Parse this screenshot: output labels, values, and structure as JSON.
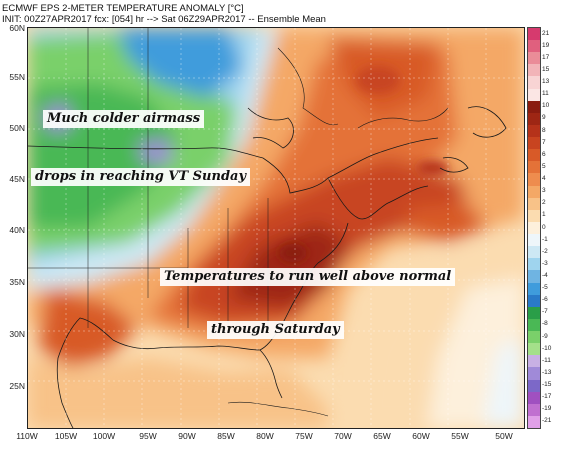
{
  "header": {
    "title": "ECMWF EPS 2-METER TEMPERATURE ANOMALY [°C]",
    "init": "INIT: 00Z27APR2017 fcx: [054] hr --> Sat 06Z29APR2017 -- Ensemble Mean"
  },
  "map": {
    "lat_labels": [
      "60N",
      "55N",
      "50N",
      "45N",
      "40N",
      "35N",
      "30N",
      "25N"
    ],
    "lon_labels": [
      "110W",
      "105W",
      "100W",
      "95W",
      "90W",
      "85W",
      "80W",
      "75W",
      "70W",
      "65W",
      "60W",
      "55W",
      "50W"
    ],
    "annotations": [
      "Much colder airmass",
      "drops in reaching VT Sunday",
      "Temperatures to run well above normal",
      "through Saturday"
    ]
  },
  "legend": {
    "labels": [
      "21",
      "19",
      "17",
      "15",
      "13",
      "11",
      "10",
      "9",
      "8",
      "7",
      "6",
      "5",
      "4",
      "3",
      "2",
      "1",
      "0",
      "-1",
      "-2",
      "-3",
      "-4",
      "-5",
      "-6",
      "-7",
      "-8",
      "-9",
      "-10",
      "-11",
      "-13",
      "-15",
      "-17",
      "-19",
      "-21"
    ],
    "colors": [
      "#d63a6e",
      "#e0607e",
      "#ea8c98",
      "#f2b4b8",
      "#f8d4d4",
      "#fbe6e4",
      "#8a1c10",
      "#9e2614",
      "#b5321a",
      "#c84420",
      "#d85a28",
      "#e47238",
      "#ee8c4e",
      "#f4a866",
      "#f8c288",
      "#fbdcb0",
      "#fdf0dc",
      "#eef6fa",
      "#cde8f4",
      "#9fd4ee",
      "#6fb4e2",
      "#3f9cdc",
      "#2a7ac8",
      "#2a9e48",
      "#4ab855",
      "#7ad06a",
      "#a4e08a",
      "#c8b0e4",
      "#a08ad8",
      "#7c68c8",
      "#a050c0",
      "#c070d0",
      "#e0a0e8"
    ]
  }
}
